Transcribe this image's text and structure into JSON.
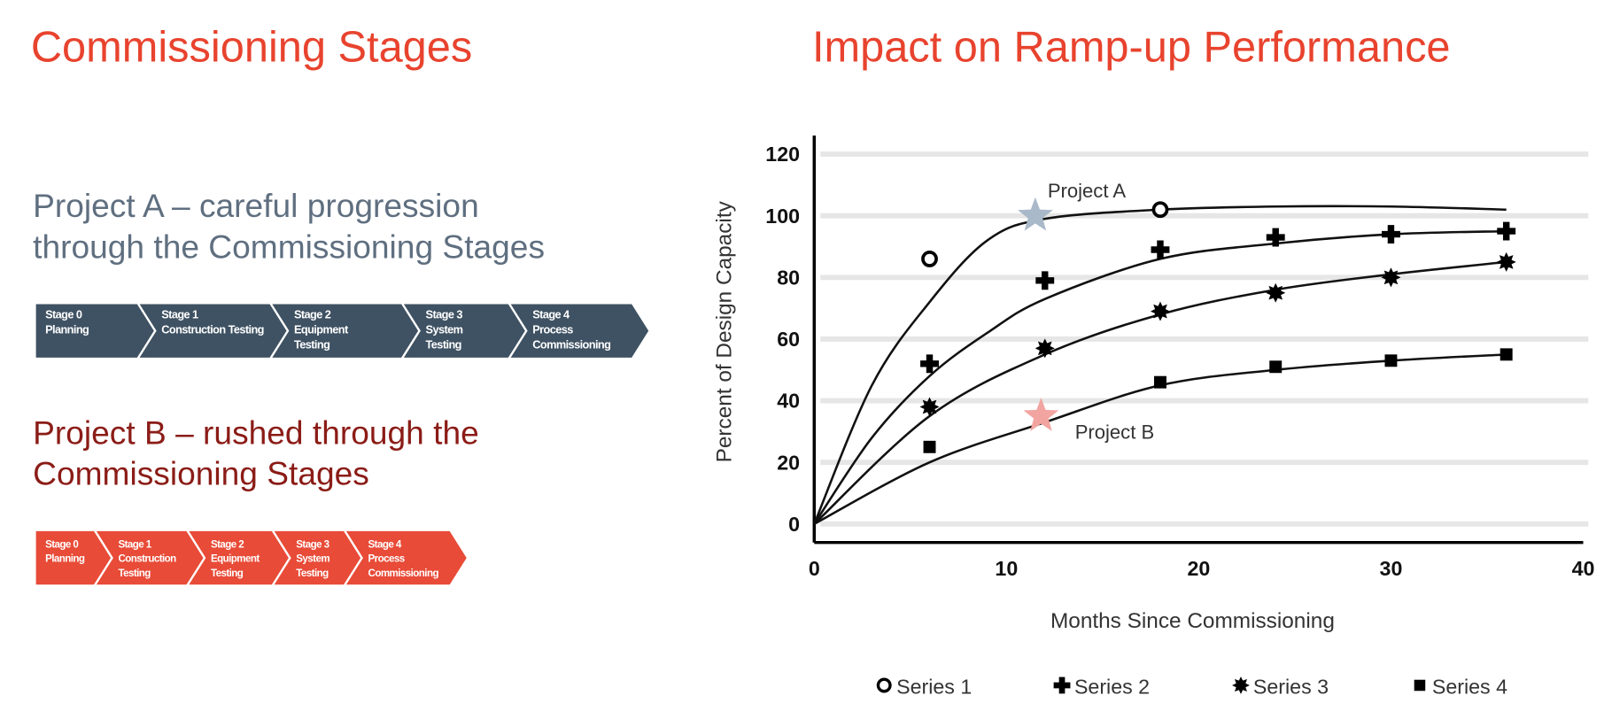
{
  "left": {
    "title": "Commissioning Stages",
    "project_a": {
      "lines": [
        "Project A – careful progression",
        "through the Commissioning Stages"
      ],
      "color": "#5f6f80",
      "stage_color": "#3f5263",
      "stages": [
        {
          "number": "Stage 0",
          "name_lines": [
            "Planning"
          ]
        },
        {
          "number": "Stage 1",
          "name_lines": [
            "Construction Testing"
          ]
        },
        {
          "number": "Stage 2",
          "name_lines": [
            "Equipment",
            "Testing"
          ]
        },
        {
          "number": "Stage 3",
          "name_lines": [
            "System",
            "Testing"
          ]
        },
        {
          "number": "Stage 4",
          "name_lines": [
            "Process",
            "Commissioning"
          ]
        }
      ]
    },
    "project_b": {
      "lines": [
        "Project B – rushed through the",
        "Commissioning Stages"
      ],
      "color": "#8b1c17",
      "stage_color": "#e84b37",
      "stages": [
        {
          "number": "Stage 0",
          "name_lines": [
            "Planning"
          ]
        },
        {
          "number": "Stage 1",
          "name_lines": [
            "Construction",
            "Testing"
          ]
        },
        {
          "number": "Stage 2",
          "name_lines": [
            "Equipment",
            "Testing"
          ]
        },
        {
          "number": "Stage 3",
          "name_lines": [
            "System",
            "Testing"
          ]
        },
        {
          "number": "Stage 4",
          "name_lines": [
            "Process",
            "Commissioning"
          ]
        }
      ]
    }
  },
  "chart_data": {
    "type": "scatter",
    "title": "Impact on Ramp-up Performance",
    "x_label": "Months Since Commissioning",
    "y_label": "Percent of Design Capacity",
    "x": [
      6,
      12,
      18,
      24,
      30,
      36
    ],
    "series": [
      {
        "name": "Series 1",
        "marker": "circle",
        "color": "#000000",
        "values": [
          86,
          null,
          102,
          null,
          null,
          null
        ]
      },
      {
        "name": "Series 2",
        "marker": "plus",
        "color": "#000000",
        "values": [
          52,
          79,
          89,
          93,
          94,
          95
        ]
      },
      {
        "name": "Series 3",
        "marker": "star",
        "color": "#000000",
        "values": [
          38,
          57,
          69,
          75,
          80,
          85
        ]
      },
      {
        "name": "Series 4",
        "marker": "square",
        "color": "#000000",
        "values": [
          25,
          null,
          46,
          51,
          53,
          55
        ]
      }
    ],
    "trend_lines": [
      {
        "color": "#111111",
        "x": [
          0,
          3,
          6,
          9,
          12,
          18,
          24,
          30,
          36
        ],
        "values": [
          0,
          45,
          72,
          92,
          99,
          102,
          103,
          103,
          102
        ]
      },
      {
        "color": "#111111",
        "x": [
          0,
          3,
          6,
          9,
          12,
          18,
          24,
          30,
          36
        ],
        "values": [
          0,
          28,
          48,
          62,
          73,
          86,
          91,
          94,
          95
        ]
      },
      {
        "color": "#111111",
        "x": [
          0,
          6,
          12,
          18,
          24,
          30,
          36
        ],
        "values": [
          0,
          35,
          55,
          68,
          76,
          81,
          85
        ]
      },
      {
        "color": "#111111",
        "x": [
          0,
          6,
          12,
          18,
          24,
          30,
          36
        ],
        "values": [
          0,
          20,
          33,
          45,
          50,
          53,
          55
        ]
      }
    ],
    "annotations": [
      {
        "text": "Project A",
        "x": 11.5,
        "y": 100,
        "color": "#a9b9ca"
      },
      {
        "text": "Project B",
        "x": 11.8,
        "y": 35,
        "color": "#f2a4a0"
      }
    ],
    "xlim": [
      0,
      40
    ],
    "xticks": [
      0,
      10,
      20,
      30,
      40
    ],
    "ylim": [
      -6,
      126
    ],
    "yticks": [
      0,
      20,
      40,
      60,
      80,
      100,
      120
    ],
    "grid": true
  }
}
